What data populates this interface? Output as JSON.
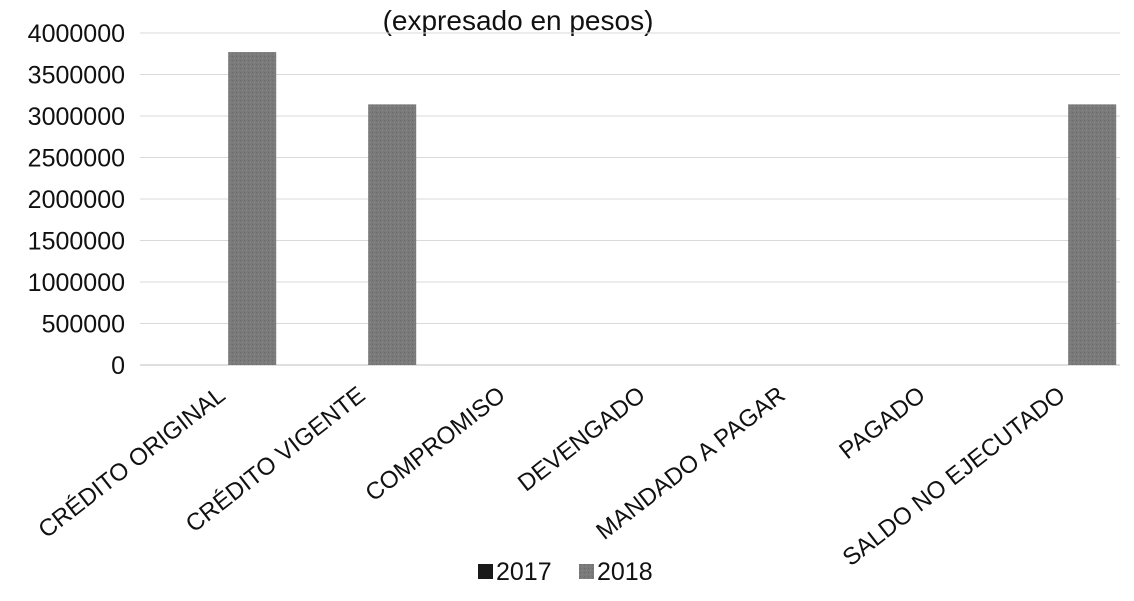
{
  "chart_data": {
    "type": "bar",
    "title": "",
    "subtitle": "(expresado en pesos)",
    "xlabel": "",
    "ylabel": "",
    "categories": [
      "CRÉDITO ORIGINAL",
      "CRÉDITO VIGENTE",
      "COMPROMISO",
      "DEVENGADO",
      "MANDADO A PAGAR",
      "PAGADO",
      "SALDO NO EJECUTADO"
    ],
    "series": [
      {
        "name": "2017",
        "color": "#1a1a1a",
        "values": [
          0,
          0,
          0,
          0,
          0,
          0,
          0
        ]
      },
      {
        "name": "2018",
        "color": "#7a7a7a",
        "values": [
          3770000,
          3140000,
          0,
          0,
          0,
          0,
          3140000
        ]
      }
    ],
    "ylim": [
      0,
      4000000
    ],
    "yticks": [
      0,
      500000,
      1000000,
      1500000,
      2000000,
      2500000,
      3000000,
      3500000,
      4000000
    ],
    "ytick_labels": [
      "0",
      "500000",
      "1000000",
      "1500000",
      "2000000",
      "2500000",
      "3000000",
      "3500000",
      "4000000"
    ],
    "grid": true,
    "legend_position": "bottom"
  }
}
